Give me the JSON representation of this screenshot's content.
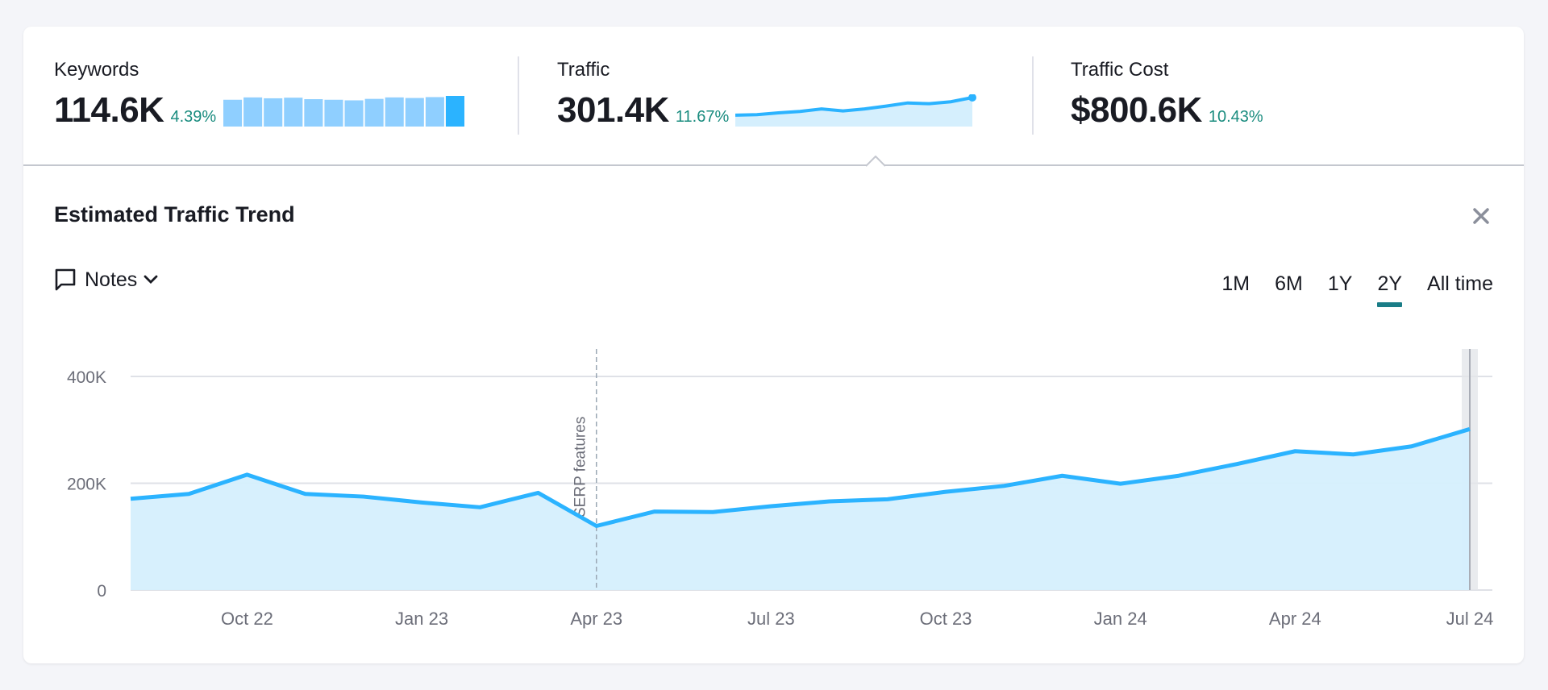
{
  "metrics": {
    "keywords": {
      "label": "Keywords",
      "value": "114.6K",
      "change": "4.39%",
      "bars": [
        91,
        99,
        96,
        98,
        93,
        91,
        89,
        94,
        99,
        97,
        100,
        104
      ]
    },
    "traffic": {
      "label": "Traffic",
      "value": "301.4K",
      "change": "11.67%"
    },
    "traffic_cost": {
      "label": "Traffic Cost",
      "value": "$800.6K",
      "change": "10.43%"
    }
  },
  "panel": {
    "title": "Estimated Traffic Trend",
    "close_icon": "close-icon",
    "notes_label": "Notes",
    "periods": [
      "1M",
      "6M",
      "1Y",
      "2Y",
      "All time"
    ],
    "active_period": "2Y"
  },
  "colors": {
    "line": "#2bb3ff",
    "area": "#d5effd",
    "bars": "#8fcfff",
    "bar_last": "#2bb3ff",
    "positive": "#1a8c7f",
    "active_tab": "#1a7d87"
  },
  "chart_data": {
    "type": "area",
    "x": [
      "Aug 22",
      "Sep 22",
      "Oct 22",
      "Nov 22",
      "Dec 22",
      "Jan 23",
      "Feb 23",
      "Mar 23",
      "Apr 23",
      "May 23",
      "Jun 23",
      "Jul 23",
      "Aug 23",
      "Sep 23",
      "Oct 23",
      "Nov 23",
      "Dec 23",
      "Jan 24",
      "Feb 24",
      "Mar 24",
      "Apr 24",
      "May 24",
      "Jun 24",
      "Jul 24"
    ],
    "values": [
      171000,
      180000,
      216000,
      180000,
      175000,
      164000,
      155000,
      182000,
      120000,
      147000,
      146000,
      157000,
      166000,
      170000,
      184000,
      195000,
      214000,
      199000,
      214000,
      236000,
      260000,
      254000,
      269000,
      301400
    ],
    "ylim": [
      0,
      400000
    ],
    "yticks": [
      {
        "v": 0,
        "label": "0"
      },
      {
        "v": 200000,
        "label": "200K"
      },
      {
        "v": 400000,
        "label": "400K"
      }
    ],
    "xticks": [
      "Oct 22",
      "Jan 23",
      "Apr 23",
      "Jul 23",
      "Oct 23",
      "Jan 24",
      "Apr 24",
      "Jul 24"
    ],
    "grid": true,
    "annotations": [
      {
        "x": "Apr 23",
        "label": "SERP features"
      }
    ]
  }
}
